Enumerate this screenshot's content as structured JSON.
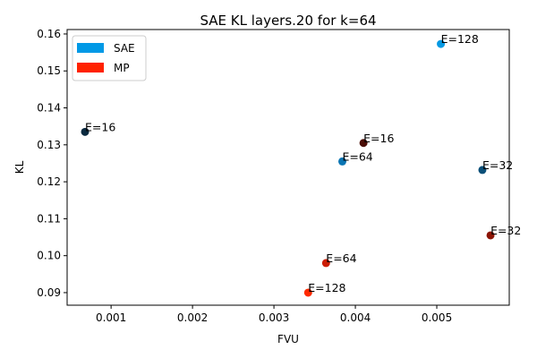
{
  "chart_data": {
    "type": "scatter",
    "title": "SAE KL layers.20 for k=64",
    "xlabel": "FVU",
    "ylabel": "KL",
    "xlim": [
      0.00046,
      0.00589
    ],
    "ylim": [
      0.0866,
      0.1612
    ],
    "xticks": [
      0.001,
      0.002,
      0.003,
      0.004,
      0.005
    ],
    "xtick_labels": [
      "0.001",
      "0.002",
      "0.003",
      "0.004",
      "0.005"
    ],
    "yticks": [
      0.09,
      0.1,
      0.11,
      0.12,
      0.13,
      0.14,
      0.15,
      0.16
    ],
    "ytick_labels": [
      "0.09",
      "0.10",
      "0.11",
      "0.12",
      "0.13",
      "0.14",
      "0.15",
      "0.16"
    ],
    "grid": false,
    "legend_position": "top-left",
    "legend": [
      {
        "label": "SAE",
        "color": "#0099e6"
      },
      {
        "label": "MP",
        "color": "#ff2200"
      }
    ],
    "series": [
      {
        "name": "SAE",
        "points": [
          {
            "x": 0.00068,
            "y": 0.1335,
            "label": "E=16",
            "color": "#0b2a40"
          },
          {
            "x": 0.00556,
            "y": 0.1232,
            "label": "E=32",
            "color": "#0b4f78"
          },
          {
            "x": 0.00384,
            "y": 0.1255,
            "label": "E=64",
            "color": "#0a75b3"
          },
          {
            "x": 0.00505,
            "y": 0.1573,
            "label": "E=128",
            "color": "#0599e3"
          }
        ]
      },
      {
        "name": "MP",
        "points": [
          {
            "x": 0.0041,
            "y": 0.1305,
            "label": "E=16",
            "color": "#4a0d06"
          },
          {
            "x": 0.00566,
            "y": 0.1055,
            "label": "E=32",
            "color": "#8c1405"
          },
          {
            "x": 0.00364,
            "y": 0.098,
            "label": "E=64",
            "color": "#cc1d03"
          },
          {
            "x": 0.00342,
            "y": 0.09,
            "label": "E=128",
            "color": "#ff2a00"
          }
        ]
      }
    ]
  }
}
